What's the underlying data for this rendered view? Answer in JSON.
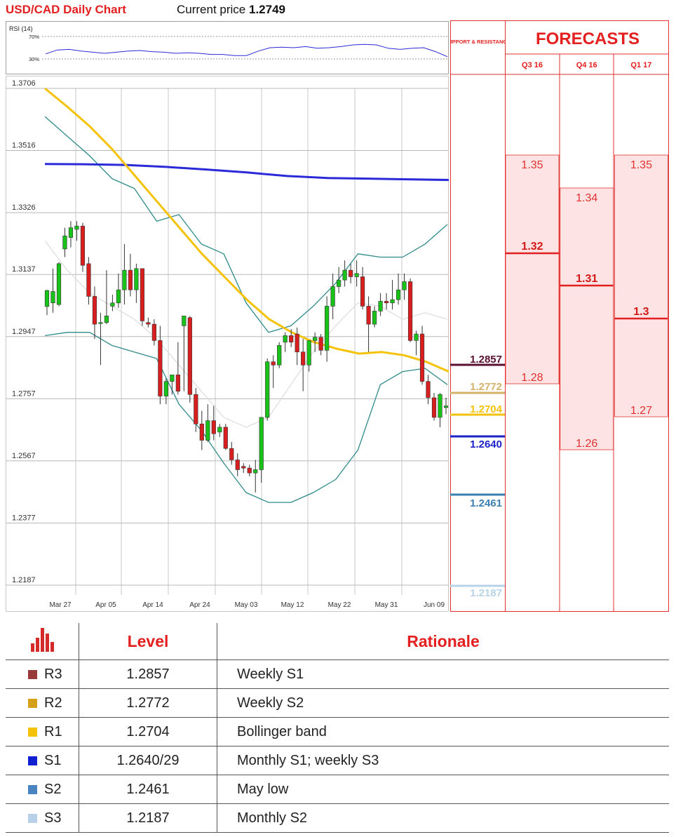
{
  "header": {
    "title": "USD/CAD Daily Chart",
    "price_label": "Current price",
    "price_value": "1.2749"
  },
  "rsi": {
    "label": "RSI (14)",
    "levels": [
      "70%",
      "30%"
    ]
  },
  "chart_data": {
    "type": "candlestick",
    "title": "USD/CAD Daily Chart",
    "y_ticks": [
      "1.3706",
      "1.3516",
      "1.3326",
      "1.3137",
      "1.2947",
      "1.2757",
      "1.2567",
      "1.2377",
      "1.2187"
    ],
    "x_ticks": [
      "Mar 27",
      "Apr 05",
      "Apr 14",
      "Apr 24",
      "May 03",
      "May 12",
      "May 22",
      "May 31",
      "Jun 09"
    ],
    "ylim": [
      1.2187,
      1.3706
    ],
    "grid": true,
    "candles": [
      {
        "o": 1.3039,
        "h": 1.309,
        "l": 1.3013,
        "c": 1.3088
      },
      {
        "o": 1.305,
        "h": 1.3155,
        "l": 1.302,
        "c": 1.3085
      },
      {
        "o": 1.3045,
        "h": 1.3175,
        "l": 1.304,
        "c": 1.317
      },
      {
        "o": 1.3215,
        "h": 1.328,
        "l": 1.319,
        "c": 1.3255
      },
      {
        "o": 1.325,
        "h": 1.33,
        "l": 1.322,
        "c": 1.328
      },
      {
        "o": 1.3275,
        "h": 1.33,
        "l": 1.324,
        "c": 1.3285
      },
      {
        "o": 1.3285,
        "h": 1.3295,
        "l": 1.3145,
        "c": 1.3165
      },
      {
        "o": 1.317,
        "h": 1.319,
        "l": 1.3045,
        "c": 1.307
      },
      {
        "o": 1.307,
        "h": 1.31,
        "l": 1.294,
        "c": 1.2985
      },
      {
        "o": 1.299,
        "h": 1.302,
        "l": 1.286,
        "c": 1.299
      },
      {
        "o": 1.299,
        "h": 1.315,
        "l": 1.2985,
        "c": 1.301
      },
      {
        "o": 1.304,
        "h": 1.3075,
        "l": 1.3025,
        "c": 1.305
      },
      {
        "o": 1.305,
        "h": 1.314,
        "l": 1.3035,
        "c": 1.309
      },
      {
        "o": 1.309,
        "h": 1.323,
        "l": 1.3045,
        "c": 1.315
      },
      {
        "o": 1.315,
        "h": 1.32,
        "l": 1.307,
        "c": 1.309
      },
      {
        "o": 1.309,
        "h": 1.317,
        "l": 1.305,
        "c": 1.3155
      },
      {
        "o": 1.3155,
        "h": 1.3155,
        "l": 1.298,
        "c": 1.2995
      },
      {
        "o": 1.299,
        "h": 1.3005,
        "l": 1.2975,
        "c": 1.2985
      },
      {
        "o": 1.2985,
        "h": 1.3,
        "l": 1.292,
        "c": 1.2935
      },
      {
        "o": 1.2935,
        "h": 1.298,
        "l": 1.274,
        "c": 1.2765
      },
      {
        "o": 1.2765,
        "h": 1.282,
        "l": 1.274,
        "c": 1.281
      },
      {
        "o": 1.281,
        "h": 1.283,
        "l": 1.277,
        "c": 1.283
      },
      {
        "o": 1.283,
        "h": 1.293,
        "l": 1.277,
        "c": 1.278
      },
      {
        "o": 1.298,
        "h": 1.301,
        "l": 1.278,
        "c": 1.301
      },
      {
        "o": 1.3005,
        "h": 1.301,
        "l": 1.2745,
        "c": 1.277
      },
      {
        "o": 1.277,
        "h": 1.279,
        "l": 1.2655,
        "c": 1.268
      },
      {
        "o": 1.268,
        "h": 1.272,
        "l": 1.26,
        "c": 1.263
      },
      {
        "o": 1.263,
        "h": 1.274,
        "l": 1.2625,
        "c": 1.269
      },
      {
        "o": 1.269,
        "h": 1.2735,
        "l": 1.263,
        "c": 1.265
      },
      {
        "o": 1.2655,
        "h": 1.268,
        "l": 1.264,
        "c": 1.267
      },
      {
        "o": 1.267,
        "h": 1.268,
        "l": 1.26,
        "c": 1.2605
      },
      {
        "o": 1.2605,
        "h": 1.2625,
        "l": 1.2555,
        "c": 1.257
      },
      {
        "o": 1.257,
        "h": 1.259,
        "l": 1.252,
        "c": 1.254
      },
      {
        "o": 1.255,
        "h": 1.256,
        "l": 1.253,
        "c": 1.2545
      },
      {
        "o": 1.2545,
        "h": 1.2555,
        "l": 1.252,
        "c": 1.253
      },
      {
        "o": 1.253,
        "h": 1.257,
        "l": 1.247,
        "c": 1.254
      },
      {
        "o": 1.254,
        "h": 1.27,
        "l": 1.25,
        "c": 1.27
      },
      {
        "o": 1.27,
        "h": 1.288,
        "l": 1.269,
        "c": 1.287
      },
      {
        "o": 1.287,
        "h": 1.289,
        "l": 1.279,
        "c": 1.286
      },
      {
        "o": 1.286,
        "h": 1.293,
        "l": 1.285,
        "c": 1.292
      },
      {
        "o": 1.293,
        "h": 1.296,
        "l": 1.29,
        "c": 1.295
      },
      {
        "o": 1.295,
        "h": 1.297,
        "l": 1.2915,
        "c": 1.293
      },
      {
        "o": 1.2955,
        "h": 1.2975,
        "l": 1.286,
        "c": 1.29
      },
      {
        "o": 1.29,
        "h": 1.294,
        "l": 1.278,
        "c": 1.286
      },
      {
        "o": 1.286,
        "h": 1.2935,
        "l": 1.284,
        "c": 1.2935
      },
      {
        "o": 1.2935,
        "h": 1.296,
        "l": 1.29,
        "c": 1.2945
      },
      {
        "o": 1.2945,
        "h": 1.2955,
        "l": 1.289,
        "c": 1.2905
      },
      {
        "o": 1.2905,
        "h": 1.307,
        "l": 1.287,
        "c": 1.304
      },
      {
        "o": 1.304,
        "h": 1.314,
        "l": 1.3,
        "c": 1.31
      },
      {
        "o": 1.31,
        "h": 1.316,
        "l": 1.308,
        "c": 1.312
      },
      {
        "o": 1.312,
        "h": 1.318,
        "l": 1.31,
        "c": 1.315
      },
      {
        "o": 1.315,
        "h": 1.317,
        "l": 1.311,
        "c": 1.313
      },
      {
        "o": 1.313,
        "h": 1.318,
        "l": 1.31,
        "c": 1.314
      },
      {
        "o": 1.313,
        "h": 1.316,
        "l": 1.303,
        "c": 1.304
      },
      {
        "o": 1.304,
        "h": 1.307,
        "l": 1.29,
        "c": 1.2985
      },
      {
        "o": 1.2985,
        "h": 1.304,
        "l": 1.2975,
        "c": 1.3025
      },
      {
        "o": 1.3025,
        "h": 1.308,
        "l": 1.301,
        "c": 1.3055
      },
      {
        "o": 1.3055,
        "h": 1.308,
        "l": 1.303,
        "c": 1.305
      },
      {
        "o": 1.305,
        "h": 1.312,
        "l": 1.303,
        "c": 1.306
      },
      {
        "o": 1.306,
        "h": 1.314,
        "l": 1.3045,
        "c": 1.309
      },
      {
        "o": 1.309,
        "h": 1.314,
        "l": 1.306,
        "c": 1.3115
      },
      {
        "o": 1.3115,
        "h": 1.3125,
        "l": 1.293,
        "c": 1.2935
      },
      {
        "o": 1.2935,
        "h": 1.2965,
        "l": 1.289,
        "c": 1.2955
      },
      {
        "o": 1.2955,
        "h": 1.298,
        "l": 1.28,
        "c": 1.281
      },
      {
        "o": 1.281,
        "h": 1.283,
        "l": 1.274,
        "c": 1.276
      },
      {
        "o": 1.276,
        "h": 1.2775,
        "l": 1.269,
        "c": 1.27
      },
      {
        "o": 1.27,
        "h": 1.2775,
        "l": 1.267,
        "c": 1.277
      },
      {
        "o": 1.273,
        "h": 1.276,
        "l": 1.271,
        "c": 1.2735
      }
    ],
    "ma_200": [
      1.3475,
      1.3474,
      1.3472,
      1.3466,
      1.3458,
      1.3449,
      1.3438,
      1.3432,
      1.343,
      1.3428,
      1.3426
    ],
    "ma_55": [
      1.3706,
      1.365,
      1.359,
      1.352,
      1.344,
      1.336,
      1.328,
      1.32,
      1.313,
      1.306,
      1.3,
      1.296,
      1.293,
      1.291,
      1.2895,
      1.29,
      1.289,
      1.287,
      1.284
    ],
    "bb_upper": [
      1.362,
      1.356,
      1.35,
      1.343,
      1.34,
      1.33,
      1.332,
      1.323,
      1.32,
      1.305,
      1.296,
      1.298,
      1.304,
      1.311,
      1.32,
      1.319,
      1.319,
      1.323,
      1.329
    ],
    "bb_lower": [
      1.295,
      1.296,
      1.296,
      1.292,
      1.29,
      1.288,
      1.274,
      1.266,
      1.256,
      1.247,
      1.244,
      1.244,
      1.247,
      1.251,
      1.26,
      1.28,
      1.284,
      1.285,
      1.28
    ],
    "bb_mid": [
      1.324,
      1.315,
      1.308,
      1.304,
      1.3,
      1.294,
      1.286,
      1.278,
      1.27,
      1.267,
      1.27,
      1.28,
      1.29,
      1.298,
      1.305,
      1.304,
      1.3,
      1.302,
      1.3
    ],
    "rsi_values": [
      39,
      46,
      47,
      44,
      42,
      40,
      42,
      44,
      45,
      43,
      42,
      40,
      41,
      40,
      38,
      38,
      36,
      36,
      44,
      50,
      51,
      50,
      52,
      49,
      50,
      52,
      55,
      56,
      55,
      49,
      47,
      49,
      50,
      43,
      34
    ]
  },
  "support_resistance": {
    "header": "SUPPORT & RESISTANCE",
    "levels": [
      {
        "value": "1.2857",
        "color": "#5a1030",
        "line": "#5a1030"
      },
      {
        "value": "1.2772",
        "color": "#d4b26a",
        "line": "#d4b26a"
      },
      {
        "value": "1.2704",
        "color": "#f5c20a",
        "line": "#f5c20a"
      },
      {
        "value": "1.2640",
        "color": "#1a22c8",
        "line": "#1a22c8"
      },
      {
        "value": "1.2461",
        "color": "#3a7fb0",
        "line": "#3a7fb0"
      },
      {
        "value": "1.2187",
        "color": "#b8d3e6",
        "line": "#b8d3e6"
      }
    ]
  },
  "forecasts": {
    "title": "FORECASTS",
    "quarters": [
      {
        "label": "Q3 16",
        "high": "1.35",
        "mid": "1.32",
        "low": "1.28"
      },
      {
        "label": "Q4 16",
        "high": "1.34",
        "mid": "1.31",
        "low": "1.26"
      },
      {
        "label": "Q1 17",
        "high": "1.35",
        "mid": "1.3",
        "low": "1.27"
      }
    ]
  },
  "table": {
    "headers": {
      "level": "Level",
      "rationale": "Rationale"
    },
    "rows": [
      {
        "name": "R3",
        "level": "1.2857",
        "rationale": "Weekly S1",
        "color": "#9a3b3b"
      },
      {
        "name": "R2",
        "level": "1.2772",
        "rationale": "Weekly S2",
        "color": "#d4a017"
      },
      {
        "name": "R1",
        "level": "1.2704",
        "rationale": "Bollinger band",
        "color": "#f5c20a"
      },
      {
        "name": "S1",
        "level": "1.2640/29",
        "rationale": "Monthly S1; weekly S3",
        "color": "#1020d0"
      },
      {
        "name": "S2",
        "level": "1.2461",
        "rationale": "May low",
        "color": "#4a84c0"
      },
      {
        "name": "S3",
        "level": "1.2187",
        "rationale": "Monthly S2",
        "color": "#b8d0e8"
      }
    ]
  }
}
